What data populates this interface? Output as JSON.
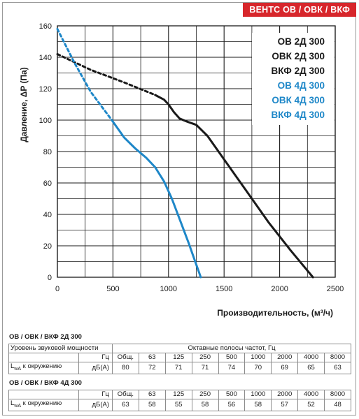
{
  "header_tag": "ВЕНТС ОВ / ОВК / ВКФ",
  "chart_data": {
    "type": "line",
    "xlabel": "Производительность, (м³/ч)",
    "ylabel": "Давление, ΔP (Па)",
    "xlim": [
      0,
      2500
    ],
    "ylim": [
      0,
      160
    ],
    "x_ticks": [
      0,
      500,
      1000,
      1500,
      2000,
      2500
    ],
    "y_ticks": [
      0,
      20,
      40,
      60,
      80,
      100,
      120,
      140,
      160
    ],
    "grid": true,
    "legend_position": "top-right",
    "series": [
      {
        "name": "ОВ 2Д 300",
        "group_labels": [
          "ОВ 2Д 300",
          "ОВК 2Д 300",
          "ВКФ 2Д 300"
        ],
        "color": "#1a1a1a",
        "dashed_points": [
          [
            0,
            142
          ],
          [
            300,
            132
          ],
          [
            600,
            124
          ],
          [
            880,
            116
          ]
        ],
        "solid_points": [
          [
            880,
            116
          ],
          [
            960,
            113
          ],
          [
            1000,
            110
          ],
          [
            1050,
            105
          ],
          [
            1100,
            101
          ],
          [
            1170,
            99
          ],
          [
            1250,
            97
          ],
          [
            1350,
            90
          ],
          [
            1500,
            75
          ],
          [
            1700,
            55
          ],
          [
            1900,
            35
          ],
          [
            2100,
            17
          ],
          [
            2300,
            0
          ]
        ]
      },
      {
        "name": "ОВ 4Д 300",
        "group_labels": [
          "ОВ 4Д 300",
          "ОВК 4Д 300",
          "ВКФ 4Д 300"
        ],
        "color": "#1e87c8",
        "dashed_points": [
          [
            0,
            158
          ],
          [
            150,
            137
          ],
          [
            300,
            118
          ],
          [
            490,
            100
          ]
        ],
        "solid_points": [
          [
            490,
            100
          ],
          [
            600,
            89
          ],
          [
            700,
            82
          ],
          [
            800,
            76
          ],
          [
            880,
            70
          ],
          [
            960,
            61
          ],
          [
            1030,
            50
          ],
          [
            1100,
            37
          ],
          [
            1180,
            22
          ],
          [
            1240,
            10
          ],
          [
            1290,
            0
          ]
        ]
      }
    ]
  },
  "tables": [
    {
      "title": "ОВ / ОВК / ВКФ 2Д 300",
      "sound_power_label": "Уровень звуковой мощности",
      "octave_label": "Октавные полосы частот, Гц",
      "hz_label": "Гц",
      "lwa_main": "L",
      "lwa_sub": "wA",
      "lwa_rest": " к окружению",
      "unit": "дБ(А)",
      "frequencies": [
        "Общ.",
        "63",
        "125",
        "250",
        "500",
        "1000",
        "2000",
        "4000",
        "8000"
      ],
      "values": [
        "80",
        "72",
        "71",
        "71",
        "74",
        "70",
        "69",
        "65",
        "63"
      ]
    },
    {
      "title": "ОВ / ОВК / ВКФ 4Д 300",
      "hz_label": "Гц",
      "lwa_main": "L",
      "lwa_sub": "wA",
      "lwa_rest": " к окружению",
      "unit": "дБ(А)",
      "frequencies": [
        "Общ.",
        "63",
        "125",
        "250",
        "500",
        "1000",
        "2000",
        "4000",
        "8000"
      ],
      "values": [
        "63",
        "58",
        "55",
        "58",
        "56",
        "58",
        "57",
        "52",
        "48"
      ]
    }
  ]
}
